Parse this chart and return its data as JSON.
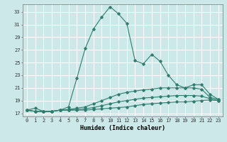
{
  "title": "",
  "xlabel": "Humidex (Indice chaleur)",
  "ylabel": "",
  "bg_color": "#cce8e8",
  "grid_color": "#ffffff",
  "line_color": "#2e7d6e",
  "xlim": [
    -0.5,
    23.5
  ],
  "ylim": [
    16.5,
    34.2
  ],
  "xticks": [
    0,
    1,
    2,
    3,
    4,
    5,
    6,
    7,
    8,
    9,
    10,
    11,
    12,
    13,
    14,
    15,
    16,
    17,
    18,
    19,
    20,
    21,
    22,
    23
  ],
  "yticks": [
    17,
    19,
    21,
    23,
    25,
    27,
    29,
    31,
    33
  ],
  "series1": [
    [
      0,
      17.5
    ],
    [
      1,
      17.8
    ],
    [
      2,
      17.3
    ],
    [
      3,
      17.3
    ],
    [
      4,
      17.5
    ],
    [
      5,
      18.0
    ],
    [
      6,
      22.5
    ],
    [
      7,
      27.2
    ],
    [
      8,
      30.3
    ],
    [
      9,
      32.2
    ],
    [
      10,
      33.8
    ],
    [
      11,
      32.7
    ],
    [
      12,
      31.2
    ],
    [
      13,
      25.3
    ],
    [
      14,
      24.8
    ],
    [
      15,
      26.3
    ],
    [
      16,
      25.2
    ],
    [
      17,
      23.0
    ],
    [
      18,
      21.5
    ],
    [
      19,
      21.0
    ],
    [
      20,
      21.5
    ],
    [
      21,
      21.5
    ],
    [
      22,
      20.0
    ],
    [
      23,
      19.2
    ]
  ],
  "series2": [
    [
      0,
      17.5
    ],
    [
      1,
      17.3
    ],
    [
      2,
      17.3
    ],
    [
      3,
      17.3
    ],
    [
      4,
      17.5
    ],
    [
      5,
      17.6
    ],
    [
      6,
      17.8
    ],
    [
      7,
      18.0
    ],
    [
      8,
      18.5
    ],
    [
      9,
      19.0
    ],
    [
      10,
      19.5
    ],
    [
      11,
      20.0
    ],
    [
      12,
      20.3
    ],
    [
      13,
      20.5
    ],
    [
      14,
      20.7
    ],
    [
      15,
      20.8
    ],
    [
      16,
      21.0
    ],
    [
      17,
      21.0
    ],
    [
      18,
      21.0
    ],
    [
      19,
      21.0
    ],
    [
      20,
      21.0
    ],
    [
      21,
      20.8
    ],
    [
      22,
      19.5
    ],
    [
      23,
      19.2
    ]
  ],
  "series3": [
    [
      0,
      17.5
    ],
    [
      1,
      17.3
    ],
    [
      2,
      17.3
    ],
    [
      3,
      17.3
    ],
    [
      4,
      17.5
    ],
    [
      5,
      17.5
    ],
    [
      6,
      17.6
    ],
    [
      7,
      17.7
    ],
    [
      8,
      17.9
    ],
    [
      9,
      18.2
    ],
    [
      10,
      18.5
    ],
    [
      11,
      18.8
    ],
    [
      12,
      19.0
    ],
    [
      13,
      19.2
    ],
    [
      14,
      19.4
    ],
    [
      15,
      19.5
    ],
    [
      16,
      19.6
    ],
    [
      17,
      19.7
    ],
    [
      18,
      19.8
    ],
    [
      19,
      19.8
    ],
    [
      20,
      19.8
    ],
    [
      21,
      19.7
    ],
    [
      22,
      19.3
    ],
    [
      23,
      19.0
    ]
  ],
  "series4": [
    [
      0,
      17.5
    ],
    [
      1,
      17.3
    ],
    [
      2,
      17.3
    ],
    [
      3,
      17.3
    ],
    [
      4,
      17.5
    ],
    [
      5,
      17.5
    ],
    [
      6,
      17.5
    ],
    [
      7,
      17.5
    ],
    [
      8,
      17.6
    ],
    [
      9,
      17.7
    ],
    [
      10,
      17.8
    ],
    [
      11,
      17.9
    ],
    [
      12,
      18.0
    ],
    [
      13,
      18.2
    ],
    [
      14,
      18.4
    ],
    [
      15,
      18.5
    ],
    [
      16,
      18.6
    ],
    [
      17,
      18.7
    ],
    [
      18,
      18.8
    ],
    [
      19,
      18.8
    ],
    [
      20,
      18.9
    ],
    [
      21,
      19.0
    ],
    [
      22,
      19.1
    ],
    [
      23,
      19.0
    ]
  ],
  "xlabel_fontsize": 6.0,
  "xlabel_fontweight": "bold",
  "tick_fontsize": 5.0,
  "linewidth": 0.8,
  "markersize": 1.8
}
